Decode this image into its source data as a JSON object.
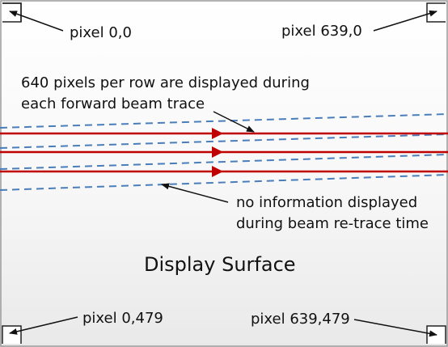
{
  "labels": {
    "top_left": "pixel 0,0",
    "top_right": "pixel 639,0",
    "bottom_left": "pixel 0,479",
    "bottom_right": "pixel 639,479",
    "forward_line1": "640 pixels per row are displayed during",
    "forward_line2": "each forward beam trace",
    "retrace_line1": "no information displayed",
    "retrace_line2": "during beam re-trace time",
    "surface_title": "Display Surface"
  },
  "colors": {
    "forward_trace": "#c00000",
    "retrace": "#4a7ebb",
    "frame": "#222222"
  }
}
